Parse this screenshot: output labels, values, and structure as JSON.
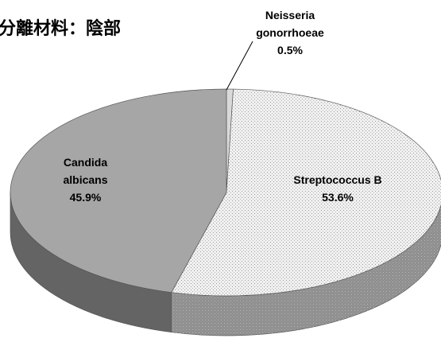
{
  "chart_data": {
    "type": "pie3d",
    "title": "分離材料：陰部",
    "categories": [
      "Neisseria gonorrhoeae",
      "Streptococcus B",
      "Candida albicans"
    ],
    "values": [
      0.5,
      53.6,
      45.9
    ],
    "value_labels": [
      "0.5%",
      "53.6%",
      "45.9%"
    ],
    "colors": [
      "#d9d9d9",
      "#f0f0f0",
      "#a6a6a6"
    ]
  }
}
